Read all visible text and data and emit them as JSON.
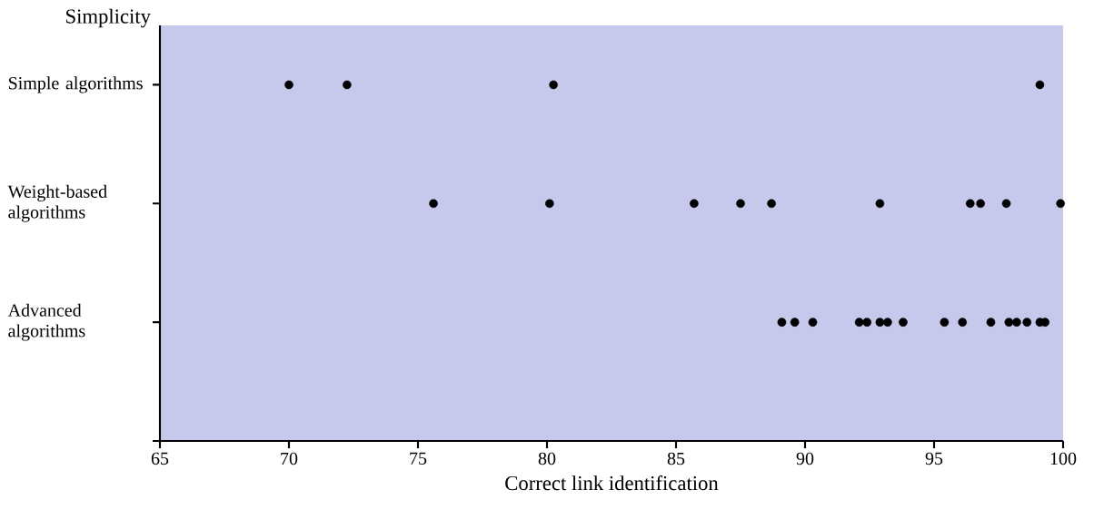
{
  "chart_data": {
    "type": "scatter",
    "orientation": "horizontal",
    "xlabel": "Correct link identification",
    "ylabel": "Simplicity",
    "categories": [
      "Simple algorithms",
      "Weight-based algorithms",
      "Advanced algorithms",
      null
    ],
    "series": [
      {
        "values": [
          70.0,
          75.6,
          89.1,
          null
        ]
      },
      {
        "values": [
          72.25,
          80.1,
          89.6,
          null
        ]
      },
      {
        "values": [
          80.25,
          85.7,
          90.3,
          null
        ]
      },
      {
        "values": [
          99.1,
          87.5,
          92.1,
          null
        ]
      },
      {
        "values": [
          null,
          88.7,
          92.4,
          null
        ]
      },
      {
        "values": [
          null,
          92.9,
          92.9,
          null
        ]
      },
      {
        "values": [
          null,
          96.4,
          93.2,
          null
        ]
      },
      {
        "values": [
          null,
          96.8,
          93.8,
          null
        ]
      },
      {
        "values": [
          null,
          97.8,
          95.4,
          null
        ]
      },
      {
        "values": [
          null,
          99.9,
          96.1,
          null
        ]
      },
      {
        "values": [
          null,
          null,
          97.2,
          null
        ]
      },
      {
        "values": [
          null,
          null,
          97.9,
          null
        ]
      },
      {
        "values": [
          null,
          null,
          98.2,
          null
        ]
      },
      {
        "values": [
          null,
          null,
          98.6,
          null
        ]
      },
      {
        "values": [
          null,
          null,
          99.1,
          null
        ]
      },
      {
        "values": [
          null,
          null,
          99.3,
          null
        ]
      }
    ],
    "color": "#000000",
    "marker": "circle",
    "grid": false,
    "xlim": [
      65,
      100
    ],
    "xticks": [
      65,
      70,
      75,
      80,
      85,
      90,
      95,
      100
    ]
  }
}
